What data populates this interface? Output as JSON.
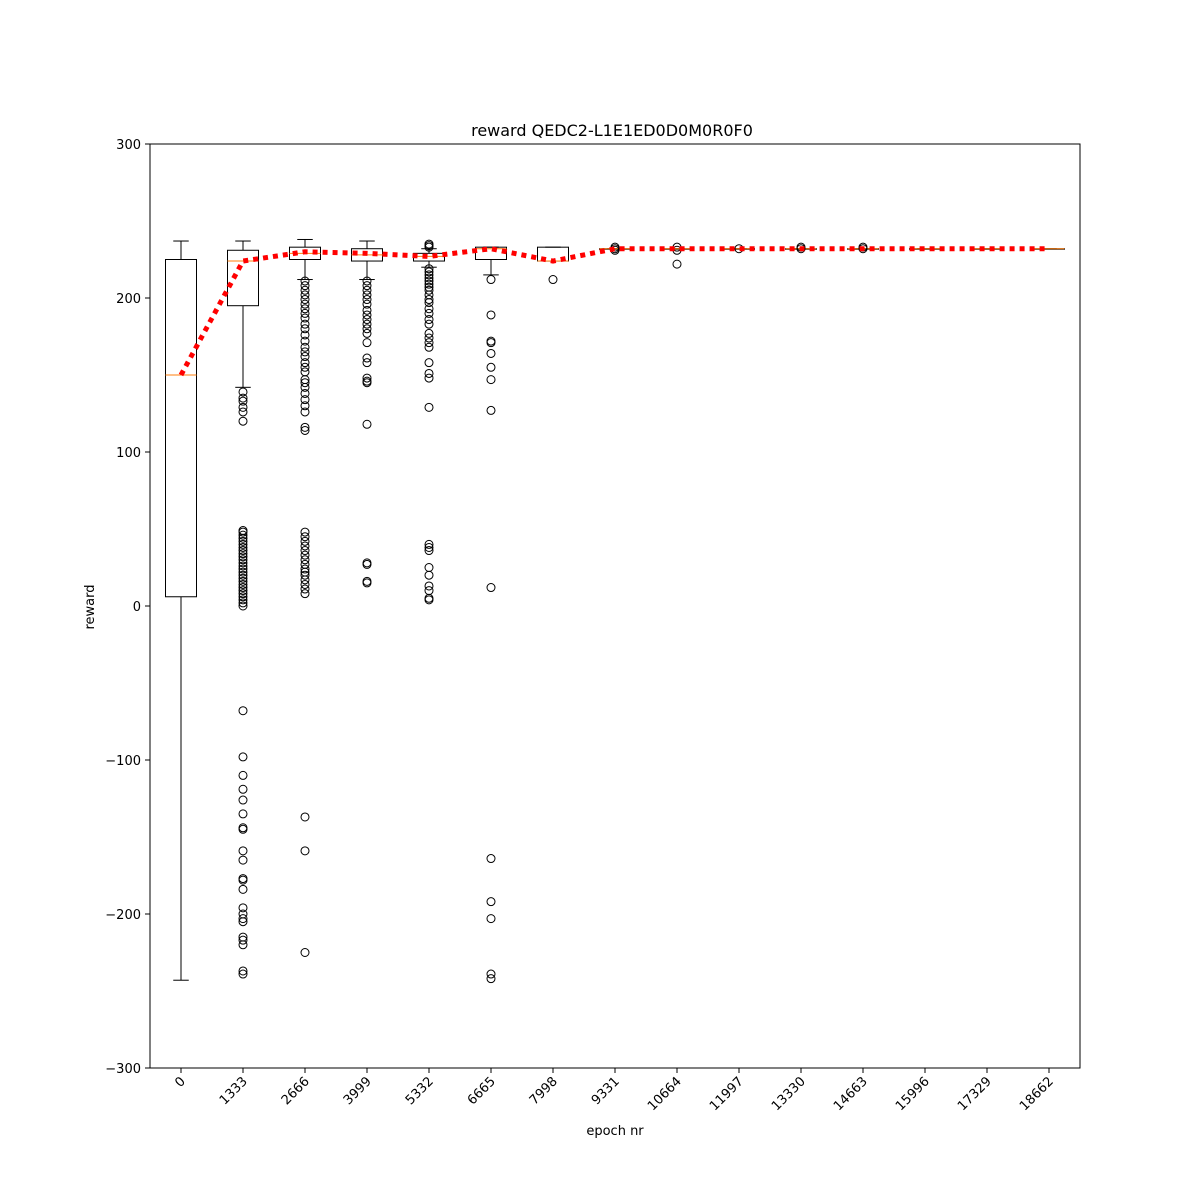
{
  "chart_data": {
    "type": "box",
    "title": "reward QEDC2-L1E1ED0D0M0R0F0",
    "xlabel": "epoch nr",
    "ylabel": "reward",
    "ylim": [
      -300,
      300
    ],
    "yticks": [
      -300,
      -200,
      -100,
      0,
      100,
      200,
      300
    ],
    "categories": [
      "0",
      "1333",
      "2666",
      "3999",
      "5332",
      "6665",
      "7998",
      "9331",
      "10664",
      "11997",
      "13330",
      "14663",
      "15996",
      "17329",
      "18662"
    ],
    "boxes": [
      {
        "whislo": -243,
        "q1": 6,
        "med": 150,
        "q3": 225,
        "whishi": 237,
        "fliers": []
      },
      {
        "whislo": 142,
        "q1": 195,
        "med": 224,
        "q3": 231,
        "whishi": 237,
        "fliers": [
          139,
          135,
          133,
          129,
          126,
          120,
          49,
          48,
          46,
          44,
          42,
          40,
          38,
          36,
          34,
          32,
          30,
          28,
          26,
          24,
          22,
          20,
          18,
          16,
          14,
          12,
          10,
          8,
          6,
          4,
          2,
          0,
          -68,
          -98,
          -110,
          -119,
          -126,
          -135,
          -144,
          -145,
          -159,
          -165,
          -177,
          -178,
          -184,
          -196,
          -200,
          -203,
          -205,
          -215,
          -217,
          -220,
          -237,
          -239
        ]
      },
      {
        "whislo": 212,
        "q1": 225,
        "med": 229,
        "q3": 233,
        "whishi": 238,
        "fliers": [
          211,
          208,
          205,
          202,
          199,
          196,
          193,
          190,
          187,
          183,
          180,
          176,
          172,
          168,
          165,
          162,
          158,
          155,
          152,
          147,
          145,
          142,
          138,
          134,
          130,
          126,
          116,
          114,
          48,
          45,
          42,
          39,
          36,
          33,
          30,
          27,
          24,
          22,
          20,
          17,
          14,
          11,
          8,
          -137,
          -159,
          -225
        ]
      },
      {
        "whislo": 212,
        "q1": 224,
        "med": 228,
        "q3": 232,
        "whishi": 237,
        "fliers": [
          211,
          208,
          205,
          202,
          199,
          196,
          192,
          189,
          186,
          183,
          180,
          177,
          171,
          161,
          158,
          148,
          146,
          145,
          118,
          28,
          27,
          16,
          15
        ]
      },
      {
        "whislo": 220,
        "q1": 224,
        "med": 227,
        "q3": 229,
        "whishi": 232,
        "fliers": [
          235,
          234,
          233,
          219,
          217,
          215,
          213,
          211,
          209,
          207,
          205,
          202,
          199,
          197,
          193,
          190,
          186,
          183,
          177,
          174,
          171,
          168,
          158,
          151,
          148,
          129,
          40,
          38,
          36,
          25,
          20,
          13,
          10,
          5,
          4
        ]
      },
      {
        "whislo": 215,
        "q1": 225,
        "med": 232,
        "q3": 233,
        "whishi": 233,
        "fliers": [
          212,
          189,
          172,
          171,
          164,
          155,
          147,
          127,
          12,
          -164,
          -192,
          -203,
          -239,
          -242
        ]
      },
      {
        "whislo": 224,
        "q1": 224,
        "med": 224,
        "q3": 233,
        "whishi": 233,
        "fliers": [
          212
        ]
      },
      {
        "whislo": 232,
        "q1": 232,
        "med": 232,
        "q3": 232,
        "whishi": 232,
        "fliers": [
          233,
          232,
          231
        ]
      },
      {
        "whislo": 232,
        "q1": 232,
        "med": 232,
        "q3": 232,
        "whishi": 232,
        "fliers": [
          233,
          231,
          222
        ]
      },
      {
        "whislo": 232,
        "q1": 232,
        "med": 232,
        "q3": 232,
        "whishi": 232,
        "fliers": [
          232
        ]
      },
      {
        "whislo": 232,
        "q1": 232,
        "med": 232,
        "q3": 232,
        "whishi": 232,
        "fliers": [
          233,
          232
        ]
      },
      {
        "whislo": 232,
        "q1": 232,
        "med": 232,
        "q3": 232,
        "whishi": 232,
        "fliers": [
          233,
          232
        ]
      },
      {
        "whislo": 232,
        "q1": 232,
        "med": 232,
        "q3": 232,
        "whishi": 232,
        "fliers": []
      },
      {
        "whislo": 232,
        "q1": 232,
        "med": 232,
        "q3": 232,
        "whishi": 232,
        "fliers": []
      },
      {
        "whislo": 232,
        "q1": 232,
        "med": 232,
        "q3": 232,
        "whishi": 232,
        "fliers": []
      }
    ],
    "mean_line": {
      "values": [
        150,
        224,
        230,
        229,
        227,
        232,
        224,
        232,
        232,
        232,
        232,
        232,
        232,
        232,
        232
      ],
      "color": "#ff0000",
      "style": "dotted"
    },
    "colors": {
      "box": "#000000",
      "median": "#ff7f0e",
      "mean_line": "#ff0000",
      "flier": "#000000"
    },
    "grid": false,
    "legend": "none"
  }
}
